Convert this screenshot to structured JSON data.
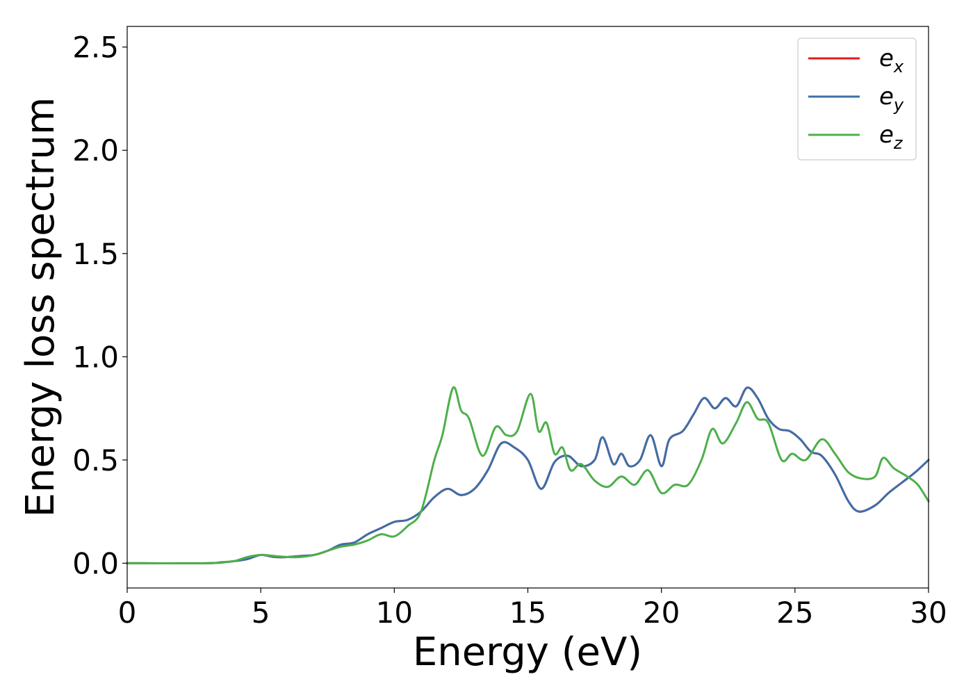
{
  "chart_data": {
    "type": "line",
    "xlabel": "Energy (eV)",
    "ylabel": "Energy loss spectrum",
    "xlim": [
      0,
      30
    ],
    "ylim": [
      -0.12,
      2.6
    ],
    "xticks": [
      0,
      5,
      10,
      15,
      20,
      25,
      30
    ],
    "xtick_labels": [
      "0",
      "5",
      "10",
      "15",
      "20",
      "25",
      "30"
    ],
    "yticks": [
      0.0,
      0.5,
      1.0,
      1.5,
      2.0,
      2.5
    ],
    "ytick_labels": [
      "0.0",
      "0.5",
      "1.0",
      "1.5",
      "2.0",
      "2.5"
    ],
    "grid": false,
    "legend_position": "top-right",
    "series": [
      {
        "name": "e_x",
        "label_base": "e",
        "label_sub": "x",
        "color": "#e41a1c",
        "x": [
          0,
          3,
          4,
          4.5,
          5,
          5.5,
          6,
          6.5,
          7,
          7.5,
          8,
          8.5,
          9,
          9.5,
          10,
          10.5,
          11,
          11.5,
          12,
          12.5,
          13,
          13.5,
          14,
          14.5,
          15,
          15.5,
          16,
          16.5,
          17,
          17.5,
          17.8,
          18.2,
          18.5,
          18.8,
          19.2,
          19.6,
          20,
          20.3,
          20.8,
          21.2,
          21.6,
          22,
          22.4,
          22.8,
          23.2,
          23.6,
          24,
          24.4,
          24.8,
          25.2,
          25.6,
          26,
          26.5,
          27,
          27.4,
          28,
          28.5,
          29,
          29.5,
          30
        ],
        "y": [
          0,
          0,
          0.01,
          0.02,
          0.04,
          0.03,
          0.03,
          0.035,
          0.04,
          0.06,
          0.09,
          0.1,
          0.14,
          0.17,
          0.2,
          0.21,
          0.25,
          0.32,
          0.36,
          0.33,
          0.36,
          0.45,
          0.58,
          0.56,
          0.5,
          0.36,
          0.49,
          0.52,
          0.47,
          0.5,
          0.61,
          0.48,
          0.53,
          0.47,
          0.5,
          0.62,
          0.47,
          0.6,
          0.64,
          0.72,
          0.8,
          0.75,
          0.8,
          0.76,
          0.85,
          0.8,
          0.7,
          0.65,
          0.64,
          0.6,
          0.54,
          0.52,
          0.43,
          0.3,
          0.25,
          0.28,
          0.34,
          0.39,
          0.44,
          0.5
        ]
      },
      {
        "name": "e_y",
        "label_base": "e",
        "label_sub": "y",
        "color": "#3d6fa8",
        "x": [
          0,
          3,
          4,
          4.5,
          5,
          5.5,
          6,
          6.5,
          7,
          7.5,
          8,
          8.5,
          9,
          9.5,
          10,
          10.5,
          11,
          11.5,
          12,
          12.5,
          13,
          13.5,
          14,
          14.5,
          15,
          15.5,
          16,
          16.5,
          17,
          17.5,
          17.8,
          18.2,
          18.5,
          18.8,
          19.2,
          19.6,
          20,
          20.3,
          20.8,
          21.2,
          21.6,
          22,
          22.4,
          22.8,
          23.2,
          23.6,
          24,
          24.4,
          24.8,
          25.2,
          25.6,
          26,
          26.5,
          27,
          27.4,
          28,
          28.5,
          29,
          29.5,
          30
        ],
        "y": [
          0,
          0,
          0.01,
          0.02,
          0.04,
          0.03,
          0.03,
          0.035,
          0.04,
          0.06,
          0.09,
          0.1,
          0.14,
          0.17,
          0.2,
          0.21,
          0.25,
          0.32,
          0.36,
          0.33,
          0.36,
          0.45,
          0.58,
          0.56,
          0.5,
          0.36,
          0.49,
          0.52,
          0.47,
          0.5,
          0.61,
          0.48,
          0.53,
          0.47,
          0.5,
          0.62,
          0.47,
          0.6,
          0.64,
          0.72,
          0.8,
          0.75,
          0.8,
          0.76,
          0.85,
          0.8,
          0.7,
          0.65,
          0.64,
          0.6,
          0.54,
          0.52,
          0.43,
          0.3,
          0.25,
          0.28,
          0.34,
          0.39,
          0.44,
          0.5
        ]
      },
      {
        "name": "e_z",
        "label_base": "e",
        "label_sub": "z",
        "color": "#4daf4a",
        "x": [
          0,
          3,
          3.5,
          4,
          4.5,
          5,
          5.5,
          6,
          6.5,
          7,
          7.5,
          8,
          8.5,
          9,
          9.5,
          10,
          10.5,
          11,
          11.5,
          11.8,
          12.2,
          12.5,
          12.8,
          13.3,
          13.8,
          14.2,
          14.6,
          15.1,
          15.4,
          15.7,
          16,
          16.3,
          16.6,
          17,
          17.5,
          18,
          18.5,
          19,
          19.5,
          20,
          20.5,
          21,
          21.5,
          21.9,
          22.3,
          22.8,
          23.2,
          23.6,
          24,
          24.5,
          24.9,
          25.4,
          26,
          26.5,
          27,
          27.5,
          28,
          28.3,
          28.7,
          29.2,
          29.6,
          30
        ],
        "y": [
          0,
          0,
          0.005,
          0.01,
          0.03,
          0.04,
          0.035,
          0.03,
          0.03,
          0.04,
          0.06,
          0.08,
          0.09,
          0.11,
          0.14,
          0.13,
          0.18,
          0.25,
          0.5,
          0.62,
          0.85,
          0.74,
          0.7,
          0.52,
          0.66,
          0.62,
          0.64,
          0.82,
          0.64,
          0.68,
          0.53,
          0.56,
          0.45,
          0.48,
          0.4,
          0.37,
          0.42,
          0.38,
          0.45,
          0.34,
          0.38,
          0.38,
          0.5,
          0.65,
          0.58,
          0.68,
          0.78,
          0.7,
          0.68,
          0.5,
          0.53,
          0.5,
          0.6,
          0.53,
          0.44,
          0.41,
          0.42,
          0.51,
          0.46,
          0.42,
          0.38,
          0.3
        ]
      }
    ]
  }
}
